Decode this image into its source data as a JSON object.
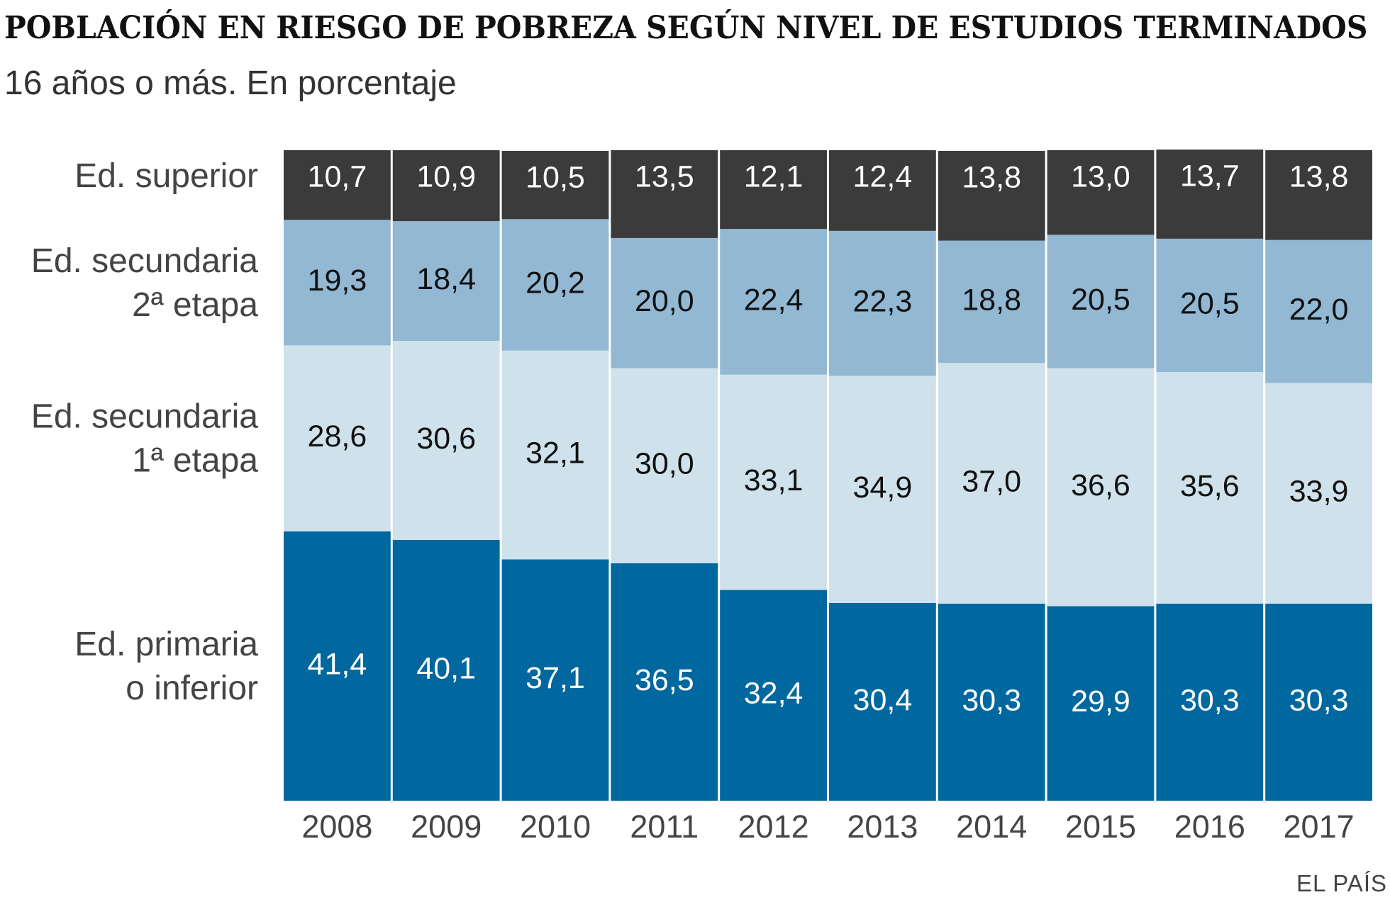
{
  "chart_data": {
    "type": "bar",
    "stacked": true,
    "title": "POBLACIÓN EN RIESGO DE POBREZA SEGÚN NIVEL DE ESTUDIOS TERMINADOS",
    "subtitle": "16 años o más. En porcentaje",
    "source": "EL PAÍS",
    "categories": [
      "2008",
      "2009",
      "2010",
      "2011",
      "2012",
      "2013",
      "2014",
      "2015",
      "2016",
      "2017"
    ],
    "ylim": [
      0,
      100
    ],
    "series": [
      {
        "name": "Ed. primaria o inferior",
        "label_lines": [
          "Ed. primaria",
          "o inferior"
        ],
        "color": "#00679f",
        "label_color": "#ffffff",
        "values": [
          41.4,
          40.1,
          37.1,
          36.5,
          32.4,
          30.4,
          30.3,
          29.9,
          30.3,
          30.3
        ],
        "labels": [
          "41,4",
          "40,1",
          "37,1",
          "36,5",
          "32,4",
          "30,4",
          "30,3",
          "29,9",
          "30,3",
          "30,3"
        ]
      },
      {
        "name": "Ed. secundaria 1ª etapa",
        "label_lines": [
          "Ed. secundaria",
          "1ª etapa"
        ],
        "color": "#cfe2ec",
        "label_color": "#111111",
        "values": [
          28.6,
          30.6,
          32.1,
          30.0,
          33.1,
          34.9,
          37.0,
          36.6,
          35.6,
          33.9
        ],
        "labels": [
          "28,6",
          "30,6",
          "32,1",
          "30,0",
          "33,1",
          "34,9",
          "37,0",
          "36,6",
          "35,6",
          "33,9"
        ]
      },
      {
        "name": "Ed. secundaria 2ª etapa",
        "label_lines": [
          "Ed. secundaria",
          "2ª etapa"
        ],
        "color": "#92b8d3",
        "label_color": "#111111",
        "values": [
          19.3,
          18.4,
          20.2,
          20.0,
          22.4,
          22.3,
          18.8,
          20.5,
          20.5,
          22.0
        ],
        "labels": [
          "19,3",
          "18,4",
          "20,2",
          "20,0",
          "22,4",
          "22,3",
          "18,8",
          "20,5",
          "20,5",
          "22,0"
        ]
      },
      {
        "name": "Ed. superior",
        "label_lines": [
          "Ed. superior"
        ],
        "color": "#3b3b3b",
        "label_color": "#ffffff",
        "values": [
          10.7,
          10.9,
          10.5,
          13.5,
          12.1,
          12.4,
          13.8,
          13.0,
          13.7,
          13.8
        ],
        "labels": [
          "10,7",
          "10,9",
          "10,5",
          "13,5",
          "12,1",
          "12,4",
          "13,8",
          "13,0",
          "13,7",
          "13,8"
        ]
      }
    ]
  }
}
